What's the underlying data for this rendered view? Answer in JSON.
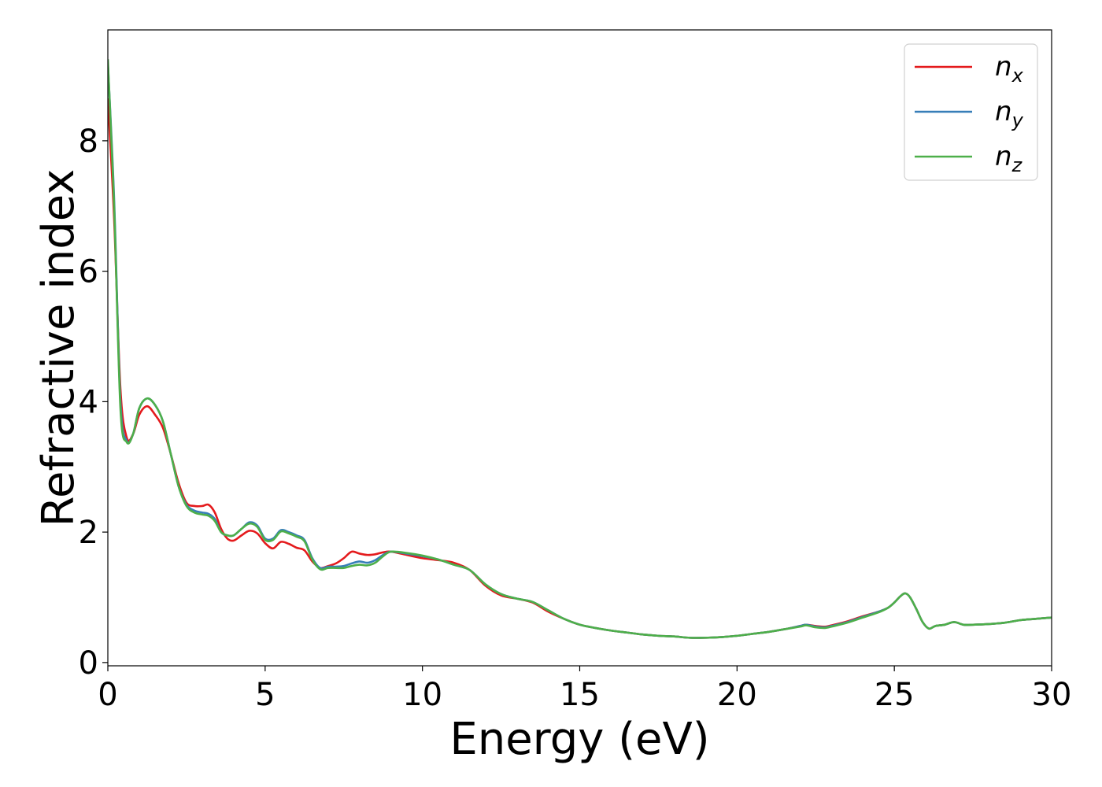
{
  "chart_data": {
    "type": "line",
    "title": "",
    "xlabel": "Energy (eV)",
    "ylabel": "Refractive index",
    "xlim": [
      0,
      30
    ],
    "ylim": [
      -0.05,
      9.7
    ],
    "xticks": [
      0,
      5,
      10,
      15,
      20,
      25,
      30
    ],
    "yticks": [
      0,
      2,
      4,
      6,
      8
    ],
    "grid": false,
    "legend_position": "top-right",
    "series": [
      {
        "name": "n",
        "subscript": "x",
        "color": "#e41a1c",
        "x": [
          0,
          0.2,
          0.4,
          0.6,
          0.8,
          1.0,
          1.25,
          1.5,
          1.75,
          2.0,
          2.25,
          2.5,
          2.75,
          3.0,
          3.2,
          3.4,
          3.6,
          3.8,
          4.0,
          4.25,
          4.5,
          4.75,
          5.0,
          5.25,
          5.5,
          5.75,
          6.0,
          6.25,
          6.5,
          6.75,
          7.0,
          7.25,
          7.5,
          7.75,
          8.0,
          8.25,
          8.5,
          8.75,
          9.0,
          9.5,
          10.0,
          10.5,
          11.0,
          11.5,
          12.0,
          12.5,
          13.0,
          13.5,
          14.0,
          14.5,
          15.0,
          15.5,
          16.0,
          16.5,
          17.0,
          17.5,
          18.0,
          18.5,
          19.0,
          19.5,
          20.0,
          20.5,
          21.0,
          21.5,
          22.0,
          22.2,
          22.5,
          22.8,
          23.0,
          23.5,
          24.0,
          24.5,
          24.8,
          25.0,
          25.2,
          25.35,
          25.5,
          25.7,
          25.9,
          26.1,
          26.3,
          26.6,
          26.9,
          27.2,
          27.5,
          28.0,
          28.5,
          29.0,
          29.5,
          30.0
        ],
        "y": [
          8.65,
          6.8,
          4.2,
          3.45,
          3.5,
          3.8,
          3.93,
          3.8,
          3.6,
          3.2,
          2.75,
          2.45,
          2.4,
          2.4,
          2.42,
          2.3,
          2.05,
          1.9,
          1.87,
          1.95,
          2.02,
          1.98,
          1.83,
          1.75,
          1.85,
          1.82,
          1.76,
          1.72,
          1.55,
          1.45,
          1.48,
          1.52,
          1.6,
          1.7,
          1.67,
          1.65,
          1.66,
          1.69,
          1.7,
          1.65,
          1.6,
          1.57,
          1.53,
          1.42,
          1.18,
          1.03,
          0.98,
          0.92,
          0.78,
          0.67,
          0.58,
          0.53,
          0.49,
          0.46,
          0.43,
          0.41,
          0.4,
          0.38,
          0.38,
          0.39,
          0.41,
          0.44,
          0.47,
          0.51,
          0.56,
          0.58,
          0.56,
          0.55,
          0.57,
          0.63,
          0.71,
          0.78,
          0.84,
          0.92,
          1.02,
          1.06,
          1.0,
          0.82,
          0.62,
          0.52,
          0.56,
          0.58,
          0.62,
          0.58,
          0.58,
          0.59,
          0.61,
          0.65,
          0.67,
          0.69
        ]
      },
      {
        "name": "n",
        "subscript": "y",
        "color": "#377eb8",
        "x": [
          0,
          0.2,
          0.4,
          0.6,
          0.8,
          1.0,
          1.25,
          1.5,
          1.75,
          2.0,
          2.25,
          2.5,
          2.75,
          3.0,
          3.2,
          3.4,
          3.6,
          3.8,
          4.0,
          4.25,
          4.5,
          4.75,
          5.0,
          5.25,
          5.5,
          5.75,
          6.0,
          6.25,
          6.5,
          6.75,
          7.0,
          7.25,
          7.5,
          7.75,
          8.0,
          8.25,
          8.5,
          8.75,
          9.0,
          9.5,
          10.0,
          10.5,
          11.0,
          11.5,
          12.0,
          12.5,
          13.0,
          13.5,
          14.0,
          14.5,
          15.0,
          15.5,
          16.0,
          16.5,
          17.0,
          17.5,
          18.0,
          18.5,
          19.0,
          19.5,
          20.0,
          20.5,
          21.0,
          21.5,
          22.0,
          22.2,
          22.5,
          22.8,
          23.0,
          23.5,
          24.0,
          24.5,
          24.8,
          25.0,
          25.2,
          25.35,
          25.5,
          25.7,
          25.9,
          26.1,
          26.3,
          26.6,
          26.9,
          27.2,
          27.5,
          28.0,
          28.5,
          29.0,
          29.5,
          30.0
        ],
        "y": [
          9.2,
          7.1,
          4.0,
          3.4,
          3.5,
          3.9,
          4.05,
          3.95,
          3.7,
          3.2,
          2.7,
          2.42,
          2.33,
          2.3,
          2.28,
          2.2,
          2.0,
          1.95,
          1.95,
          2.05,
          2.15,
          2.1,
          1.9,
          1.9,
          2.03,
          2.0,
          1.95,
          1.88,
          1.6,
          1.45,
          1.47,
          1.47,
          1.48,
          1.52,
          1.55,
          1.53,
          1.57,
          1.65,
          1.7,
          1.67,
          1.63,
          1.58,
          1.5,
          1.42,
          1.2,
          1.05,
          0.98,
          0.93,
          0.8,
          0.67,
          0.58,
          0.53,
          0.49,
          0.46,
          0.43,
          0.41,
          0.4,
          0.38,
          0.38,
          0.39,
          0.41,
          0.44,
          0.47,
          0.51,
          0.56,
          0.58,
          0.55,
          0.54,
          0.56,
          0.62,
          0.7,
          0.78,
          0.84,
          0.92,
          1.02,
          1.06,
          1.0,
          0.82,
          0.62,
          0.52,
          0.56,
          0.58,
          0.62,
          0.58,
          0.58,
          0.59,
          0.61,
          0.65,
          0.67,
          0.69
        ]
      },
      {
        "name": "n",
        "subscript": "z",
        "color": "#4daf4a",
        "x": [
          0,
          0.2,
          0.4,
          0.6,
          0.8,
          1.0,
          1.25,
          1.5,
          1.75,
          2.0,
          2.25,
          2.5,
          2.75,
          3.0,
          3.2,
          3.4,
          3.6,
          3.8,
          4.0,
          4.25,
          4.5,
          4.75,
          5.0,
          5.25,
          5.5,
          5.75,
          6.0,
          6.25,
          6.5,
          6.75,
          7.0,
          7.25,
          7.5,
          7.75,
          8.0,
          8.25,
          8.5,
          8.75,
          9.0,
          9.5,
          10.0,
          10.5,
          11.0,
          11.5,
          12.0,
          12.5,
          13.0,
          13.5,
          14.0,
          14.5,
          15.0,
          15.5,
          16.0,
          16.5,
          17.0,
          17.5,
          18.0,
          18.5,
          19.0,
          19.5,
          20.0,
          20.5,
          21.0,
          21.5,
          22.0,
          22.2,
          22.5,
          22.8,
          23.0,
          23.5,
          24.0,
          24.5,
          24.8,
          25.0,
          25.2,
          25.35,
          25.5,
          25.7,
          25.9,
          26.1,
          26.3,
          26.6,
          26.9,
          27.2,
          27.5,
          28.0,
          28.5,
          29.0,
          29.5,
          30.0
        ],
        "y": [
          9.25,
          7.0,
          3.9,
          3.38,
          3.5,
          3.9,
          4.05,
          3.95,
          3.7,
          3.2,
          2.7,
          2.4,
          2.3,
          2.27,
          2.25,
          2.17,
          2.0,
          1.95,
          1.95,
          2.05,
          2.13,
          2.08,
          1.88,
          1.88,
          2.01,
          1.98,
          1.93,
          1.86,
          1.58,
          1.43,
          1.45,
          1.45,
          1.45,
          1.48,
          1.5,
          1.49,
          1.53,
          1.63,
          1.7,
          1.68,
          1.64,
          1.58,
          1.5,
          1.42,
          1.2,
          1.05,
          0.98,
          0.93,
          0.8,
          0.67,
          0.58,
          0.53,
          0.49,
          0.46,
          0.43,
          0.41,
          0.4,
          0.38,
          0.38,
          0.39,
          0.41,
          0.44,
          0.47,
          0.51,
          0.55,
          0.57,
          0.54,
          0.53,
          0.55,
          0.61,
          0.69,
          0.77,
          0.84,
          0.92,
          1.02,
          1.06,
          1.0,
          0.82,
          0.62,
          0.52,
          0.56,
          0.58,
          0.62,
          0.58,
          0.58,
          0.59,
          0.61,
          0.65,
          0.67,
          0.69
        ]
      }
    ]
  }
}
